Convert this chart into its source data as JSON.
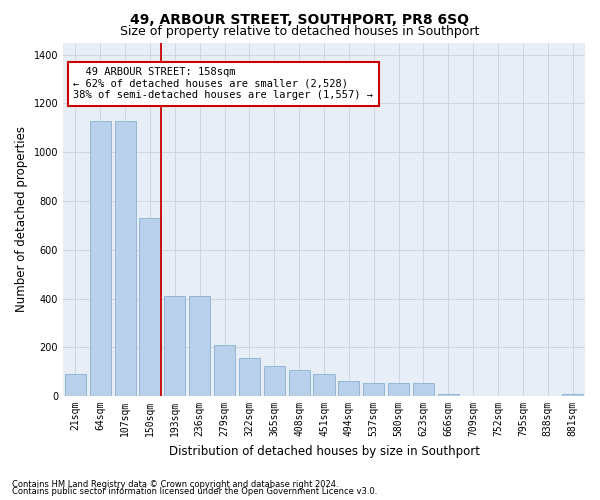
{
  "title": "49, ARBOUR STREET, SOUTHPORT, PR8 6SQ",
  "subtitle": "Size of property relative to detached houses in Southport",
  "xlabel": "Distribution of detached houses by size in Southport",
  "ylabel": "Number of detached properties",
  "footnote1": "Contains HM Land Registry data © Crown copyright and database right 2024.",
  "footnote2": "Contains public sector information licensed under the Open Government Licence v3.0.",
  "annotation_line1": "  49 ARBOUR STREET: 158sqm  ",
  "annotation_line2": "← 62% of detached houses are smaller (2,528)",
  "annotation_line3": "38% of semi-detached houses are larger (1,557) →",
  "categories": [
    "21sqm",
    "64sqm",
    "107sqm",
    "150sqm",
    "193sqm",
    "236sqm",
    "279sqm",
    "322sqm",
    "365sqm",
    "408sqm",
    "451sqm",
    "494sqm",
    "537sqm",
    "580sqm",
    "623sqm",
    "666sqm",
    "709sqm",
    "752sqm",
    "795sqm",
    "838sqm",
    "881sqm"
  ],
  "values": [
    90,
    1130,
    1130,
    730,
    410,
    410,
    210,
    155,
    125,
    105,
    90,
    60,
    55,
    55,
    55,
    10,
    0,
    0,
    0,
    0,
    10
  ],
  "bar_color": "#b8d0ea",
  "bar_edge_color": "#8ab0d0",
  "grid_color": "#ccd5e0",
  "background_color": "#e8eef5",
  "vline_color": "#cc0000",
  "ylim": [
    0,
    1450
  ],
  "yticks": [
    0,
    200,
    400,
    600,
    800,
    1000,
    1200,
    1400
  ],
  "annotation_box_color": "#cc0000",
  "title_fontsize": 10,
  "subtitle_fontsize": 9,
  "axis_label_fontsize": 8.5,
  "tick_fontsize": 7,
  "annotation_fontsize": 7.5,
  "footnote_fontsize": 6
}
